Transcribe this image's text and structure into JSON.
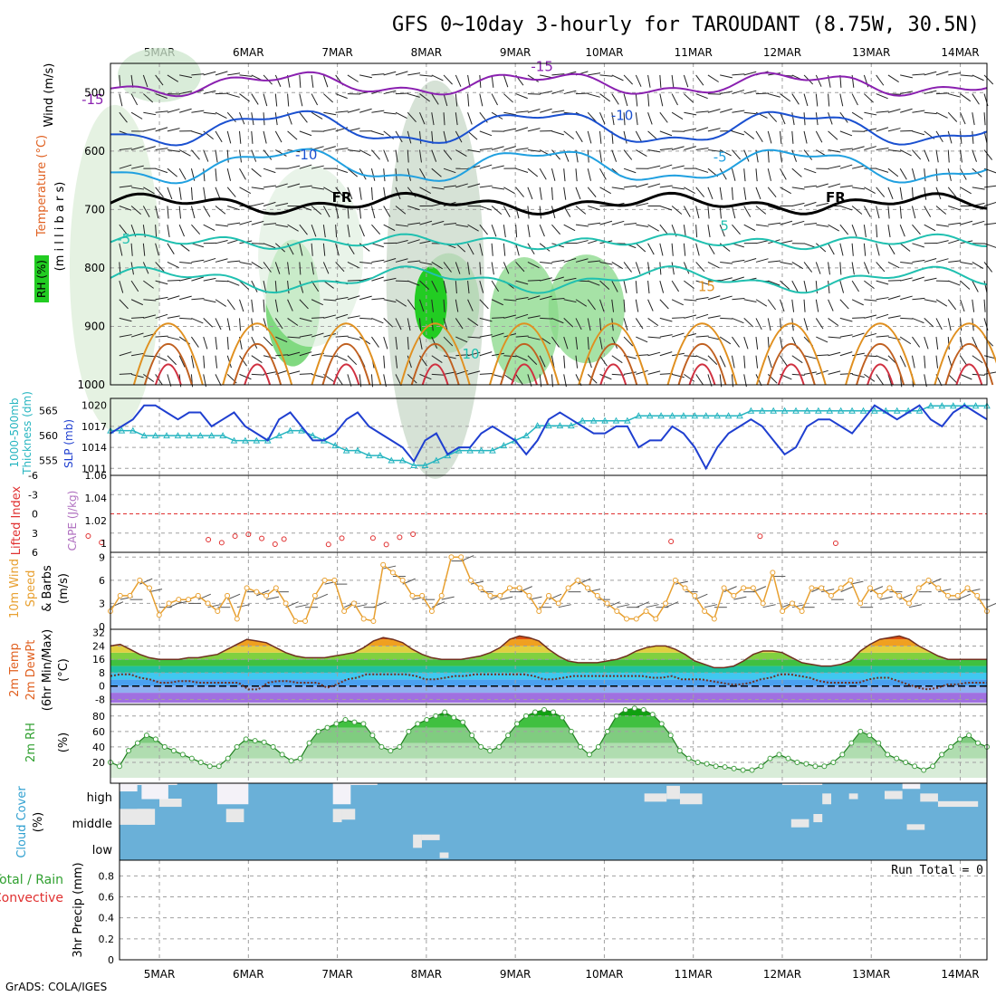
{
  "title": "GFS 0~10day 3-hourly for TAROUDANT (8.75W, 30.5N)",
  "credit": "GrADS: COLA/IGES",
  "dates": [
    "5MAR",
    "6MAR",
    "7MAR",
    "8MAR",
    "9MAR",
    "10MAR",
    "11MAR",
    "12MAR",
    "13MAR",
    "14MAR"
  ],
  "colors": {
    "slp": "#1f3fd0",
    "thickness": "#26b5c0",
    "lifted": "#e03030",
    "cape": "#b070c0",
    "wind": "#e8a030",
    "dew": "#808080",
    "rh_marker": "#40a040",
    "cloud": "#6ab0d8",
    "cloud_fill": "#e8e8e8",
    "grid": "#a0a0a0"
  },
  "panels": {
    "upper": {
      "ylabels": [
        "Wind (m/s)",
        "Temperature (°C)",
        "(m i l l i b a r s)",
        "RH (%)"
      ],
      "yticks": [
        "500",
        "600",
        "700",
        "800",
        "900",
        "1000"
      ],
      "contour_labels": [
        {
          "text": "-15",
          "day": 4.25,
          "p": 520,
          "color": "#8a20b0"
        },
        {
          "text": "-15",
          "day": 9.3,
          "p": 463,
          "color": "#8a20b0"
        },
        {
          "text": "-10",
          "day": 6.65,
          "p": 614,
          "color": "#1a50d0"
        },
        {
          "text": "-10",
          "day": 10.2,
          "p": 547,
          "color": "#1a50d0"
        },
        {
          "text": "-5",
          "day": 11.3,
          "p": 618,
          "color": "#20a0e0"
        },
        {
          "text": "-5",
          "day": 4.6,
          "p": 758,
          "color": "#20c0b0"
        },
        {
          "text": "5",
          "day": 11.35,
          "p": 736,
          "color": "#20c0b0"
        },
        {
          "text": "10",
          "day": 8.5,
          "p": 955,
          "color": "#20c0b0"
        },
        {
          "text": "15",
          "day": 11.15,
          "p": 840,
          "color": "#e09020"
        },
        {
          "text": "FR",
          "day": 7.05,
          "p": 687,
          "color": "#000000"
        },
        {
          "text": "FR",
          "day": 12.6,
          "p": 687,
          "color": "#000000"
        }
      ]
    },
    "slp_thick": {
      "ylabels_left": [
        "1000-500mb",
        "Thickness (dm)"
      ],
      "ylabels_right": [
        "SLP (mb)"
      ],
      "ticks_left": [
        "565",
        "560",
        "555"
      ],
      "ticks_right": [
        "1020",
        "1017",
        "1014",
        "1011"
      ]
    },
    "li_cape": {
      "ylabels_left": [
        "Lifted Index"
      ],
      "ylabels_right": [
        "CAPE (J/kg)"
      ],
      "ticks_left": [
        "-6",
        "-3",
        "0",
        "3",
        "6"
      ],
      "ticks_right": [
        "1.06",
        "1.04",
        "1.02",
        "1"
      ]
    },
    "wind10m": {
      "ylabels": [
        "10m Wind",
        "Speed",
        "& Barbs",
        "(m/s)"
      ],
      "yticks": [
        "0",
        "3",
        "6",
        "9"
      ]
    },
    "temp2m": {
      "ylabels": [
        "2m Temp",
        "2m DewPt",
        "(6hr Min/Max)",
        "(°C)"
      ],
      "yticks": [
        "32",
        "24",
        "16",
        "8",
        "0",
        "-8"
      ]
    },
    "rh2m": {
      "ylabels": [
        "2m RH",
        "(%)"
      ],
      "yticks": [
        "80",
        "60",
        "40",
        "20"
      ]
    },
    "cloud": {
      "ylabels": [
        "Cloud Cover",
        "(%)"
      ],
      "levels": [
        "high",
        "middle",
        "low"
      ]
    },
    "precip": {
      "ylabels": [
        "Total / Rain",
        "Convective",
        "3hr Precip (mm)"
      ],
      "yticks": [
        "0.8",
        "0.6",
        "0.4",
        "0.2",
        "0"
      ],
      "run_total": "Run Total = 0"
    }
  },
  "chart_data": {
    "type": "line",
    "x_unit": "days from 4 March 00Z, 3-hourly",
    "slp_mb": [
      1016,
      1017,
      1018,
      1020,
      1020,
      1019,
      1018,
      1019,
      1019,
      1017,
      1018,
      1019,
      1017,
      1016,
      1015,
      1018,
      1019,
      1017,
      1015,
      1015,
      1016,
      1018,
      1019,
      1017,
      1016,
      1015,
      1014,
      1012,
      1015,
      1016,
      1013,
      1014,
      1014,
      1016,
      1017,
      1016,
      1015,
      1013,
      1015,
      1018,
      1019,
      1018,
      1017,
      1016,
      1016,
      1017,
      1017,
      1014,
      1015,
      1015,
      1017,
      1016,
      1014,
      1011,
      1014,
      1016,
      1017,
      1018,
      1017,
      1015,
      1013,
      1014,
      1017,
      1018,
      1018,
      1017,
      1016,
      1018,
      1020,
      1019,
      1018,
      1019,
      1020,
      1018,
      1017,
      1019,
      1020,
      1019,
      1018
    ],
    "thickness_dm": [
      561,
      561,
      561,
      560,
      560,
      560,
      560,
      560,
      560,
      560,
      560,
      559,
      559,
      559,
      559,
      560,
      561,
      561,
      560,
      559,
      558,
      557,
      557,
      556,
      556,
      555,
      555,
      554,
      554,
      555,
      556,
      557,
      557,
      557,
      557,
      558,
      559,
      560,
      562,
      562,
      562,
      562,
      563,
      563,
      563,
      563,
      563,
      564,
      564,
      564,
      564,
      564,
      564,
      564,
      564,
      564,
      564,
      565,
      565,
      565,
      565,
      565,
      565,
      565,
      565,
      565,
      565,
      565,
      565,
      565,
      565,
      565,
      565,
      566,
      566,
      566,
      566,
      566,
      566
    ],
    "wind10m_ms": [
      2,
      4,
      4,
      6,
      5,
      1.5,
      3,
      3.5,
      3.5,
      4,
      3,
      2,
      4,
      1,
      5,
      4.5,
      4,
      5,
      3,
      0.7,
      0.7,
      4,
      6,
      6,
      2,
      3,
      1,
      0.7,
      8,
      7,
      6,
      4,
      4,
      2,
      4,
      9,
      9,
      6,
      5,
      4,
      4,
      5,
      5,
      4,
      2,
      4,
      3,
      5,
      6,
      5,
      4,
      3,
      2,
      1,
      1,
      2,
      1,
      3,
      6,
      5,
      4,
      2,
      1,
      5,
      4,
      5,
      5,
      3,
      7,
      2,
      3,
      2,
      5,
      5,
      4,
      5,
      6,
      3,
      5,
      4,
      5,
      4,
      3,
      5,
      6,
      5,
      4,
      4,
      5,
      4,
      2
    ],
    "temp2m_c": [
      24,
      25,
      22,
      19,
      17,
      16,
      16,
      16,
      17,
      17,
      18,
      19,
      22,
      25,
      28,
      27,
      26,
      23,
      20,
      18,
      17,
      17,
      17,
      18,
      19,
      20,
      23,
      27,
      29,
      28,
      26,
      22,
      19,
      17,
      16,
      16,
      16,
      17,
      18,
      20,
      23,
      28,
      30,
      29,
      27,
      22,
      18,
      15,
      14,
      14,
      14,
      15,
      16,
      18,
      21,
      23,
      24,
      24,
      22,
      19,
      15,
      13,
      11,
      11,
      12,
      15,
      19,
      21,
      21,
      20,
      17,
      14,
      13,
      12,
      12,
      13,
      15,
      21,
      25,
      28,
      29,
      30,
      28,
      24,
      21,
      18,
      16,
      16,
      16,
      16,
      16
    ],
    "dewpt2m_c": [
      6,
      7,
      7,
      5,
      4,
      2,
      2,
      3,
      3,
      2,
      2,
      2,
      2,
      2,
      -2,
      -2,
      2,
      3,
      3,
      2,
      2,
      2,
      -1,
      1,
      4,
      5,
      7,
      7,
      7,
      7,
      7,
      6,
      4,
      4,
      5,
      6,
      6,
      7,
      7,
      7,
      7,
      7,
      7,
      6,
      4,
      4,
      5,
      6,
      6,
      6,
      6,
      6,
      6,
      6,
      6,
      5,
      5,
      6,
      4,
      4,
      4,
      3,
      2,
      1,
      1,
      2,
      4,
      5,
      7,
      7,
      6,
      5,
      3,
      2,
      2,
      2,
      2,
      4,
      5,
      5,
      3,
      1,
      -1,
      -2,
      -1,
      1,
      1,
      2,
      2,
      2
    ],
    "rh2m_pct": [
      20,
      15,
      35,
      45,
      55,
      50,
      40,
      35,
      30,
      25,
      20,
      15,
      15,
      25,
      40,
      50,
      48,
      46,
      40,
      30,
      22,
      25,
      45,
      60,
      65,
      70,
      75,
      72,
      70,
      55,
      40,
      35,
      40,
      60,
      70,
      75,
      80,
      85,
      78,
      72,
      55,
      40,
      35,
      40,
      55,
      70,
      80,
      85,
      88,
      85,
      78,
      60,
      40,
      30,
      40,
      60,
      80,
      88,
      90,
      88,
      82,
      70,
      55,
      35,
      25,
      20,
      18,
      15,
      14,
      12,
      10,
      10,
      15,
      25,
      30,
      25,
      20,
      18,
      15,
      15,
      20,
      30,
      45,
      60,
      55,
      45,
      30,
      25,
      20,
      15,
      10,
      15,
      30,
      40,
      50,
      55,
      45,
      40
    ],
    "lifted_index_marks_days": [
      4.2,
      4.35,
      5.55,
      5.7,
      5.85,
      6.0,
      6.15,
      6.3,
      6.4,
      6.9,
      7.05,
      7.4,
      7.55,
      7.7,
      7.85,
      10.75,
      11.75,
      12.6
    ],
    "precip_mm": [],
    "cloud_cover": {
      "high": [
        [
          0.1,
          0.4,
          5.0,
          5.25
        ],
        [
          0.2,
          1.0,
          5.65,
          6.0
        ],
        [
          0.4,
          1.0,
          4.8,
          5.1
        ],
        [
          1.0,
          1.0,
          4.3,
          4.55
        ],
        [
          0.7,
          1.0,
          4.55,
          4.75
        ],
        [
          1.0,
          1.0,
          5.1,
          5.2
        ],
        [
          0.2,
          1.0,
          6.95,
          7.15
        ],
        [
          1.0,
          1.0,
          7.15,
          7.45
        ],
        [
          0.3,
          0.6,
          10.45,
          10.7
        ],
        [
          0.4,
          0.9,
          10.7,
          10.85
        ],
        [
          0.2,
          0.6,
          10.85,
          11.1
        ],
        [
          1.0,
          1.0,
          12.0,
          12.2
        ],
        [
          1.0,
          1.0,
          12.2,
          12.45
        ],
        [
          0.2,
          0.6,
          12.45,
          12.55
        ],
        [
          0.4,
          0.6,
          12.75,
          12.85
        ],
        [
          0.4,
          0.7,
          13.15,
          13.35
        ],
        [
          0.8,
          1.0,
          13.35,
          13.55
        ],
        [
          0.3,
          0.6,
          13.55,
          13.75
        ],
        [
          0.1,
          0.3,
          13.75,
          14.2
        ]
      ],
      "middle": [
        [
          0.4,
          1.0,
          4.4,
          4.75
        ],
        [
          0.4,
          1.0,
          4.75,
          4.95
        ],
        [
          0.5,
          1.0,
          5.75,
          5.95
        ],
        [
          0.5,
          1.0,
          6.95,
          7.05
        ],
        [
          0.6,
          1.0,
          7.05,
          7.2
        ],
        [
          0.3,
          0.6,
          12.1,
          12.3
        ],
        [
          0.5,
          0.8,
          12.35,
          12.45
        ],
        [
          0.2,
          0.4,
          13.4,
          13.6
        ]
      ],
      "low": [
        [
          0.5,
          1.0,
          7.85,
          7.95
        ],
        [
          0.8,
          1.0,
          7.95,
          8.15
        ],
        [
          0.1,
          0.3,
          8.15,
          8.25
        ]
      ]
    }
  }
}
